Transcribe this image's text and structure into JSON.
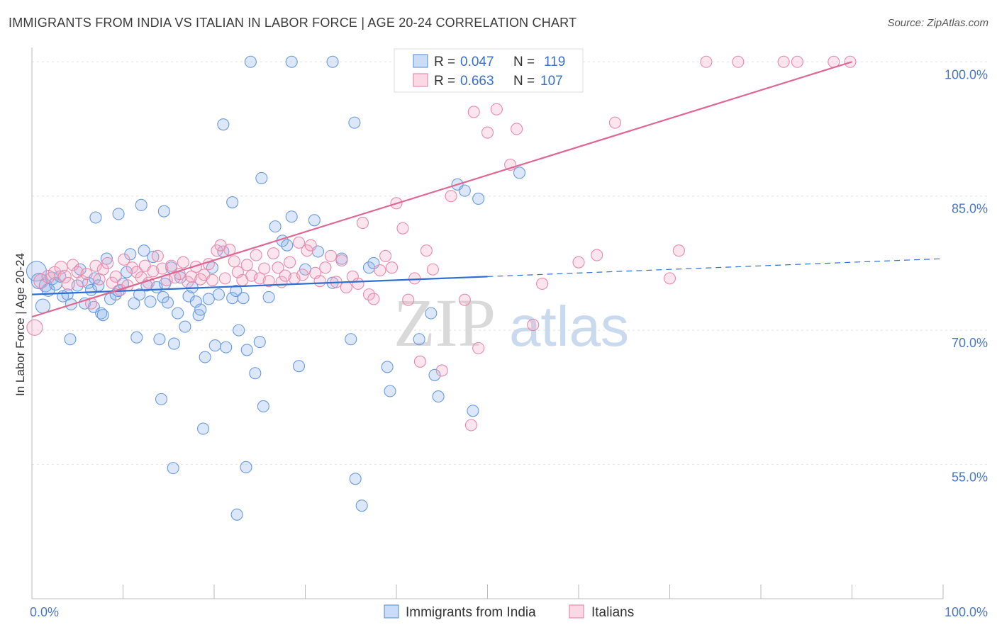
{
  "title": "IMMIGRANTS FROM INDIA VS ITALIAN IN LABOR FORCE | AGE 20-24 CORRELATION CHART",
  "source": "Source: ZipAtlas.com",
  "watermark": {
    "zip": "ZIP",
    "atlas": "atlas"
  },
  "chart_data": {
    "type": "scatter",
    "title": "IMMIGRANTS FROM INDIA VS ITALIAN IN LABOR FORCE | AGE 20-24 CORRELATION CHART",
    "xlabel": "",
    "ylabel": "In Labor Force | Age 20-24",
    "xlim": [
      0,
      100
    ],
    "ylim": [
      40,
      102
    ],
    "x_ticks": [
      {
        "value": 0,
        "label": "0.0%"
      },
      {
        "value": 100,
        "label": "100.0%"
      }
    ],
    "y_ticks": [
      {
        "value": 55,
        "label": "55.0%"
      },
      {
        "value": 70,
        "label": "70.0%"
      },
      {
        "value": 85,
        "label": "85.0%"
      },
      {
        "value": 100,
        "label": "100.0%"
      }
    ],
    "grid": true,
    "legend_position": "top-center",
    "series": [
      {
        "name": "Immigrants from India",
        "color": "#6a9ae0",
        "fill": "rgba(140,180,235,0.30)",
        "line_color": "#2f6fd0",
        "R": "0.047",
        "N": "119",
        "trend": {
          "x0": 0,
          "y0": 74.0,
          "x1": 50,
          "y1": 76.0,
          "dash_to_x": 100,
          "dash_to_y": 78.0
        },
        "points": [
          [
            0.5,
            76.6,
            14
          ],
          [
            0.8,
            75.5,
            11
          ],
          [
            1.2,
            72.7,
            10
          ],
          [
            1.5,
            75.0,
            9
          ],
          [
            1.8,
            74.5,
            9
          ],
          [
            2.2,
            75.8,
            9
          ],
          [
            2.6,
            75.2,
            9
          ],
          [
            3.1,
            76.0,
            8
          ],
          [
            3.4,
            73.8,
            8
          ],
          [
            3.9,
            74.0,
            8
          ],
          [
            4.3,
            72.9,
            8
          ],
          [
            4.2,
            69.0,
            8
          ],
          [
            5.0,
            75.0,
            8
          ],
          [
            5.3,
            76.8,
            8
          ],
          [
            5.8,
            73.0,
            8
          ],
          [
            6.2,
            75.3,
            8
          ],
          [
            6.8,
            72.6,
            8
          ],
          [
            6.5,
            74.5,
            8
          ],
          [
            6.9,
            75.8,
            8
          ],
          [
            7.3,
            75.0,
            8
          ],
          [
            7.6,
            71.9,
            8
          ],
          [
            7.8,
            71.7,
            8
          ],
          [
            8.2,
            78.0,
            8
          ],
          [
            8.6,
            73.5,
            8
          ],
          [
            9.2,
            74.0,
            8
          ],
          [
            9.5,
            74.4,
            8
          ],
          [
            10.0,
            75.2,
            8
          ],
          [
            10.4,
            76.5,
            8
          ],
          [
            10.8,
            78.5,
            8
          ],
          [
            11.2,
            73.0,
            8
          ],
          [
            11.5,
            69.2,
            8
          ],
          [
            11.8,
            74.0,
            8
          ],
          [
            12.3,
            78.9,
            8
          ],
          [
            12.6,
            75.0,
            8
          ],
          [
            13.0,
            73.2,
            8
          ],
          [
            13.3,
            78.2,
            8
          ],
          [
            13.7,
            74.8,
            8
          ],
          [
            14.0,
            69.0,
            8
          ],
          [
            14.4,
            73.7,
            8
          ],
          [
            14.6,
            75.2,
            8
          ],
          [
            14.9,
            73.1,
            8
          ],
          [
            15.3,
            77.0,
            8
          ],
          [
            15.6,
            68.5,
            8
          ],
          [
            16.0,
            71.9,
            8
          ],
          [
            16.3,
            75.9,
            8
          ],
          [
            16.8,
            70.4,
            8
          ],
          [
            17.2,
            73.8,
            8
          ],
          [
            17.6,
            74.8,
            8
          ],
          [
            18.0,
            73.2,
            8
          ],
          [
            18.3,
            71.7,
            8
          ],
          [
            18.5,
            72.3,
            8
          ],
          [
            19.0,
            67.0,
            8
          ],
          [
            19.4,
            73.5,
            8
          ],
          [
            19.8,
            77.0,
            8
          ],
          [
            20.1,
            68.3,
            8
          ],
          [
            20.5,
            74.0,
            8
          ],
          [
            21.0,
            78.8,
            8
          ],
          [
            21.3,
            68.1,
            8
          ],
          [
            22.0,
            73.6,
            8
          ],
          [
            22.4,
            74.4,
            8
          ],
          [
            22.7,
            70.0,
            8
          ],
          [
            23.2,
            73.6,
            8
          ],
          [
            23.6,
            67.8,
            8
          ],
          [
            24.5,
            65.2,
            8
          ],
          [
            25.0,
            68.7,
            8
          ],
          [
            25.4,
            61.5,
            8
          ],
          [
            26.0,
            73.7,
            8
          ],
          [
            26.7,
            81.6,
            8
          ],
          [
            27.5,
            80.0,
            8
          ],
          [
            28.0,
            79.5,
            8
          ],
          [
            28.5,
            82.7,
            8
          ],
          [
            29.3,
            66.0,
            8
          ],
          [
            30.0,
            76.8,
            8
          ],
          [
            31.0,
            82.3,
            8
          ],
          [
            31.4,
            78.8,
            8
          ],
          [
            33.0,
            75.3,
            8
          ],
          [
            34.0,
            78.0,
            8
          ],
          [
            35.0,
            69.0,
            8
          ],
          [
            35.4,
            93.2,
            8
          ],
          [
            37.0,
            77.0,
            8
          ],
          [
            37.5,
            77.5,
            8
          ],
          [
            39.0,
            65.9,
            8
          ],
          [
            39.3,
            63.2,
            8
          ],
          [
            42.5,
            69.0,
            8
          ],
          [
            43.8,
            71.9,
            8
          ],
          [
            44.2,
            65.0,
            8
          ],
          [
            44.6,
            62.6,
            8
          ],
          [
            46.7,
            86.3,
            8
          ],
          [
            47.5,
            85.6,
            8
          ],
          [
            48.4,
            61.0,
            8
          ],
          [
            49.0,
            84.7,
            8
          ],
          [
            51.0,
            100.0,
            8
          ],
          [
            53.5,
            87.6,
            8
          ],
          [
            24.0,
            100.0,
            8
          ],
          [
            28.5,
            100.0,
            8
          ],
          [
            33.0,
            100.0,
            8
          ],
          [
            14.5,
            83.3,
            8
          ],
          [
            12.0,
            84.0,
            8
          ],
          [
            7.0,
            82.6,
            8
          ],
          [
            9.5,
            83.0,
            8
          ],
          [
            22.0,
            84.3,
            8
          ],
          [
            18.8,
            59.0,
            8
          ],
          [
            14.2,
            62.3,
            8
          ],
          [
            15.5,
            54.6,
            8
          ],
          [
            23.5,
            54.7,
            8
          ],
          [
            21.0,
            93.0,
            8
          ],
          [
            25.2,
            87.0,
            8
          ],
          [
            35.5,
            53.4,
            8
          ],
          [
            36.2,
            50.4,
            8
          ],
          [
            22.5,
            49.4,
            8
          ]
        ]
      },
      {
        "name": "Italians",
        "color": "#e88aaa",
        "fill": "rgba(245,170,195,0.30)",
        "line_color": "#e0678f",
        "R": "0.663",
        "N": "107",
        "trend": {
          "x0": 0,
          "y0": 71.5,
          "x1": 90,
          "y1": 100.0
        },
        "points": [
          [
            0.3,
            70.3,
            11
          ],
          [
            1.0,
            75.5,
            10
          ],
          [
            1.8,
            76.0,
            9
          ],
          [
            2.5,
            76.4,
            9
          ],
          [
            3.2,
            77.0,
            9
          ],
          [
            3.6,
            76.0,
            9
          ],
          [
            4.0,
            75.2,
            9
          ],
          [
            4.5,
            77.3,
            8
          ],
          [
            5.0,
            76.5,
            8
          ],
          [
            5.5,
            75.5,
            8
          ],
          [
            6.0,
            76.3,
            8
          ],
          [
            6.5,
            73.0,
            8
          ],
          [
            7.0,
            77.2,
            8
          ],
          [
            7.4,
            75.7,
            8
          ],
          [
            7.8,
            76.8,
            8
          ],
          [
            8.3,
            77.5,
            8
          ],
          [
            8.8,
            75.3,
            8
          ],
          [
            9.2,
            76.0,
            8
          ],
          [
            9.7,
            74.5,
            8
          ],
          [
            10.1,
            77.9,
            8
          ],
          [
            10.5,
            75.0,
            8
          ],
          [
            11.0,
            77.0,
            8
          ],
          [
            11.5,
            76.5,
            8
          ],
          [
            12.0,
            75.9,
            8
          ],
          [
            12.4,
            77.2,
            8
          ],
          [
            12.8,
            75.3,
            8
          ],
          [
            13.3,
            76.6,
            8
          ],
          [
            13.8,
            78.3,
            8
          ],
          [
            14.3,
            76.9,
            8
          ],
          [
            14.8,
            75.6,
            8
          ],
          [
            15.3,
            77.2,
            8
          ],
          [
            15.7,
            75.9,
            8
          ],
          [
            16.2,
            76.3,
            8
          ],
          [
            16.6,
            77.6,
            8
          ],
          [
            17.1,
            75.4,
            8
          ],
          [
            17.5,
            76.0,
            8
          ],
          [
            18.0,
            77.1,
            8
          ],
          [
            18.5,
            75.7,
            8
          ],
          [
            18.9,
            76.2,
            8
          ],
          [
            19.4,
            77.4,
            8
          ],
          [
            19.8,
            75.6,
            8
          ],
          [
            20.3,
            78.9,
            8
          ],
          [
            20.7,
            79.5,
            8
          ],
          [
            21.2,
            75.8,
            8
          ],
          [
            21.7,
            79.0,
            8
          ],
          [
            22.2,
            77.7,
            8
          ],
          [
            22.6,
            76.5,
            8
          ],
          [
            23.1,
            75.6,
            8
          ],
          [
            23.6,
            77.3,
            8
          ],
          [
            24.1,
            76.1,
            8
          ],
          [
            24.6,
            78.4,
            8
          ],
          [
            25.0,
            75.8,
            8
          ],
          [
            25.5,
            76.9,
            8
          ],
          [
            26.0,
            75.5,
            8
          ],
          [
            26.5,
            78.6,
            8
          ],
          [
            27.0,
            77.0,
            8
          ],
          [
            27.4,
            75.4,
            8
          ],
          [
            27.8,
            76.1,
            8
          ],
          [
            28.3,
            77.6,
            8
          ],
          [
            28.8,
            75.8,
            8
          ],
          [
            29.3,
            79.8,
            8
          ],
          [
            29.7,
            76.2,
            8
          ],
          [
            30.2,
            78.9,
            8
          ],
          [
            30.6,
            79.5,
            8
          ],
          [
            31.1,
            76.4,
            8
          ],
          [
            31.6,
            75.5,
            8
          ],
          [
            32.2,
            77.0,
            8
          ],
          [
            32.8,
            78.3,
            8
          ],
          [
            33.4,
            75.4,
            8
          ],
          [
            34.0,
            77.8,
            8
          ],
          [
            34.5,
            74.8,
            8
          ],
          [
            35.2,
            76.0,
            8
          ],
          [
            35.8,
            75.2,
            8
          ],
          [
            36.3,
            82.0,
            8
          ],
          [
            37.0,
            74.0,
            8
          ],
          [
            37.5,
            73.5,
            8
          ],
          [
            38.2,
            76.7,
            8
          ],
          [
            38.8,
            78.3,
            8
          ],
          [
            39.5,
            77.0,
            8
          ],
          [
            40.0,
            84.2,
            8
          ],
          [
            40.7,
            81.4,
            8
          ],
          [
            41.3,
            73.4,
            8
          ],
          [
            42.0,
            75.8,
            8
          ],
          [
            42.6,
            66.5,
            8
          ],
          [
            43.3,
            78.9,
            8
          ],
          [
            44.0,
            76.8,
            8
          ],
          [
            45.0,
            65.5,
            8
          ],
          [
            46.0,
            85.0,
            8
          ],
          [
            47.5,
            73.4,
            8
          ],
          [
            48.2,
            59.4,
            8
          ],
          [
            49.0,
            68.0,
            8
          ],
          [
            50.0,
            92.1,
            8
          ],
          [
            51.0,
            94.7,
            8
          ],
          [
            52.5,
            88.5,
            8
          ],
          [
            53.2,
            92.5,
            8
          ],
          [
            55.0,
            70.6,
            8
          ],
          [
            56.0,
            75.2,
            8
          ],
          [
            60.0,
            77.6,
            8
          ],
          [
            62.0,
            78.4,
            8
          ],
          [
            64.0,
            93.2,
            8
          ],
          [
            70.0,
            75.8,
            8
          ],
          [
            71.0,
            78.9,
            8
          ],
          [
            74.0,
            100.0,
            8
          ],
          [
            77.5,
            100.0,
            8
          ],
          [
            82.5,
            100.0,
            8
          ],
          [
            84.0,
            100.0,
            8
          ],
          [
            88.0,
            100.0,
            8
          ],
          [
            89.8,
            100.0,
            8
          ],
          [
            48.5,
            94.4,
            8
          ],
          [
            55.5,
            100.0,
            8
          ],
          [
            58.0,
            100.0,
            8
          ]
        ]
      }
    ]
  },
  "legend": {
    "items": [
      {
        "r_label": "R =",
        "r_value": "0.047",
        "n_label": "N =",
        "n_value": "119"
      },
      {
        "r_label": "R =",
        "r_value": "0.663",
        "n_label": "N =",
        "n_value": "107"
      }
    ]
  },
  "bottom_legend": {
    "items": [
      {
        "label": "Immigrants from India"
      },
      {
        "label": "Italians"
      }
    ]
  }
}
